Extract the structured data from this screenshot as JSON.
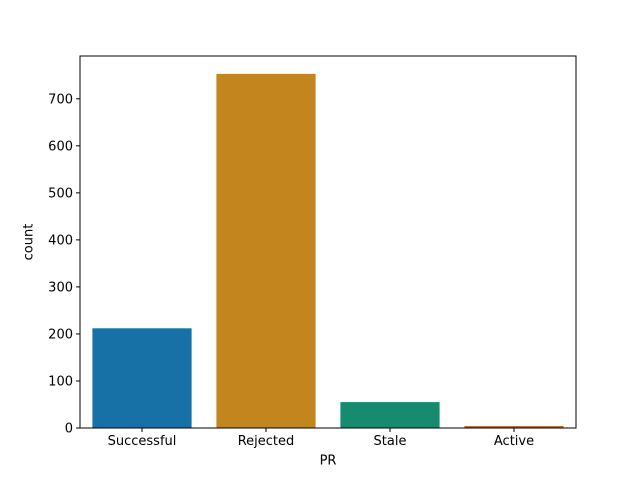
{
  "figure": {
    "background": "#ffffff",
    "spine_color": "#000000",
    "tick_color": "#000000"
  },
  "chart_data": {
    "type": "bar",
    "xlabel": "PR",
    "ylabel": "count",
    "categories": [
      "Successful",
      "Rejected",
      "Stale",
      "Active"
    ],
    "values": [
      212,
      753,
      55,
      4
    ],
    "bar_colors": [
      "#1770a6",
      "#c3861f",
      "#168b6e",
      "#ba611b"
    ],
    "ylim": [
      0,
      791
    ],
    "yticks": [
      0,
      100,
      200,
      300,
      400,
      500,
      600,
      700
    ],
    "bar_width_fraction": 0.8,
    "grid": false,
    "legend": "none"
  }
}
